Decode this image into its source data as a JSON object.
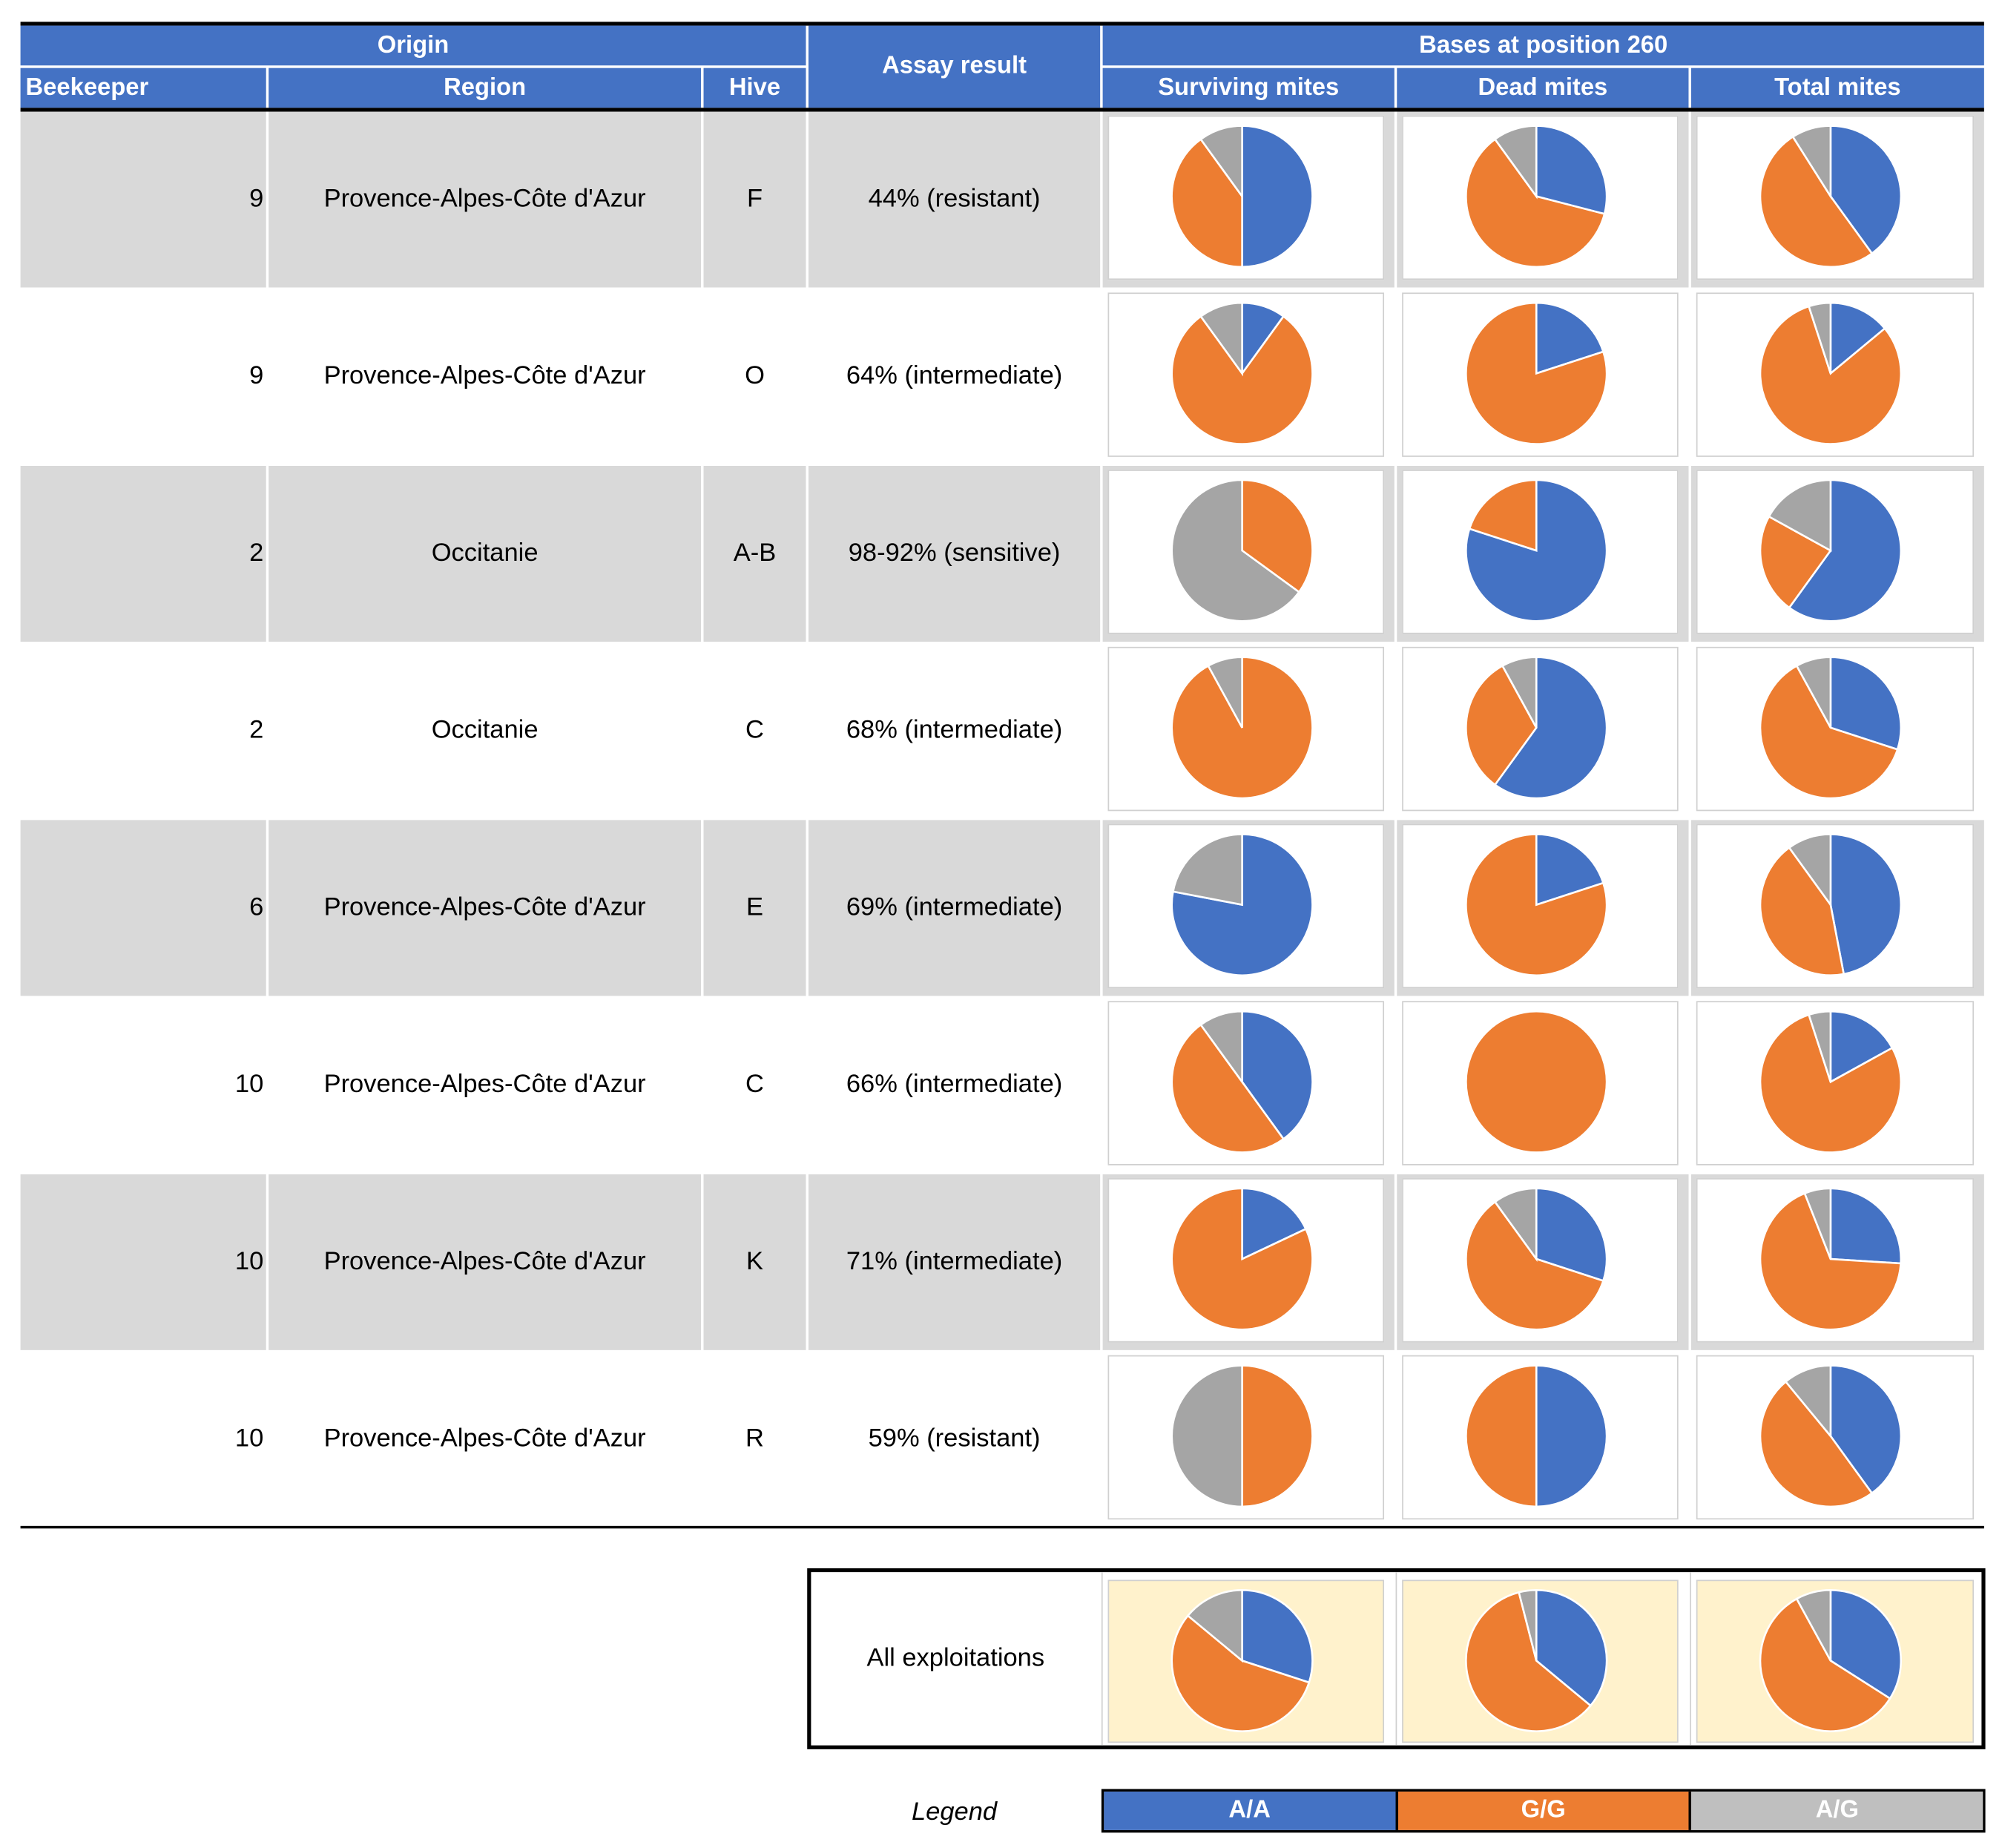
{
  "header": {
    "origin": "Origin",
    "assay": "Assay result",
    "bases": "Bases at position 260",
    "beekeeper": "Beekeeper",
    "region": "Region",
    "hive": "Hive",
    "surviving": "Surviving mites",
    "dead": "Dead mites",
    "total": "Total mites"
  },
  "colors": {
    "AA": "#4472c4",
    "GG": "#ed7d31",
    "AG": "#a5a5a5",
    "header": "#4472c4",
    "stripe": "#d9d9d9",
    "summary": "#fff2cc"
  },
  "rows": [
    {
      "beekeeper": "9",
      "region": "Provence-Alpes-Côte d'Azur",
      "hive": "F",
      "assay": "44% (resistant)"
    },
    {
      "beekeeper": "9",
      "region": "Provence-Alpes-Côte d'Azur",
      "hive": "O",
      "assay": "64% (intermediate)"
    },
    {
      "beekeeper": "2",
      "region": "Occitanie",
      "hive": "A-B",
      "assay": "98-92% (sensitive)"
    },
    {
      "beekeeper": "2",
      "region": "Occitanie",
      "hive": "C",
      "assay": "68% (intermediate)"
    },
    {
      "beekeeper": "6",
      "region": "Provence-Alpes-Côte d'Azur",
      "hive": "E",
      "assay": "69% (intermediate)"
    },
    {
      "beekeeper": "10",
      "region": "Provence-Alpes-Côte d'Azur",
      "hive": "C",
      "assay": "66% (intermediate)"
    },
    {
      "beekeeper": "10",
      "region": "Provence-Alpes-Côte d'Azur",
      "hive": "K",
      "assay": "71% (intermediate)"
    },
    {
      "beekeeper": "10",
      "region": "Provence-Alpes-Côte d'Azur",
      "hive": "R",
      "assay": "59% (resistant)"
    }
  ],
  "summary": {
    "label": "All exploitations"
  },
  "legend": {
    "title": "Legend",
    "items": [
      "A/A",
      "G/G",
      "A/G"
    ]
  },
  "chart_data": {
    "type": "pie",
    "slice_order": [
      "A/A",
      "G/G",
      "A/G"
    ],
    "columns": [
      "Surviving mites",
      "Dead mites",
      "Total mites"
    ],
    "rows": [
      {
        "label": "9 F",
        "values": [
          [
            50,
            40,
            10
          ],
          [
            29,
            61,
            10
          ],
          [
            40,
            51,
            9
          ]
        ]
      },
      {
        "label": "9 O",
        "values": [
          [
            10,
            80,
            10
          ],
          [
            20,
            80,
            0
          ],
          [
            14,
            81,
            5
          ]
        ]
      },
      {
        "label": "2 A-B",
        "values": [
          [
            0,
            35,
            65
          ],
          [
            80,
            20,
            0
          ],
          [
            60,
            23,
            17
          ]
        ]
      },
      {
        "label": "2 C",
        "values": [
          [
            0,
            92,
            8
          ],
          [
            60,
            32,
            8
          ],
          [
            30,
            62,
            8
          ]
        ]
      },
      {
        "label": "6 E",
        "values": [
          [
            78,
            0,
            22
          ],
          [
            20,
            80,
            0
          ],
          [
            47,
            43,
            10
          ]
        ]
      },
      {
        "label": "10 C",
        "values": [
          [
            40,
            50,
            10
          ],
          [
            0,
            100,
            0
          ],
          [
            17,
            78,
            5
          ]
        ]
      },
      {
        "label": "10 K",
        "values": [
          [
            18,
            82,
            0
          ],
          [
            30,
            60,
            10
          ],
          [
            26,
            68,
            6
          ]
        ]
      },
      {
        "label": "10 R",
        "values": [
          [
            0,
            50,
            50
          ],
          [
            50,
            50,
            0
          ],
          [
            40,
            49,
            11
          ]
        ]
      },
      {
        "label": "All exploitations",
        "values": [
          [
            30,
            56,
            14
          ],
          [
            36,
            60,
            4
          ],
          [
            34,
            58,
            8
          ]
        ]
      }
    ]
  }
}
